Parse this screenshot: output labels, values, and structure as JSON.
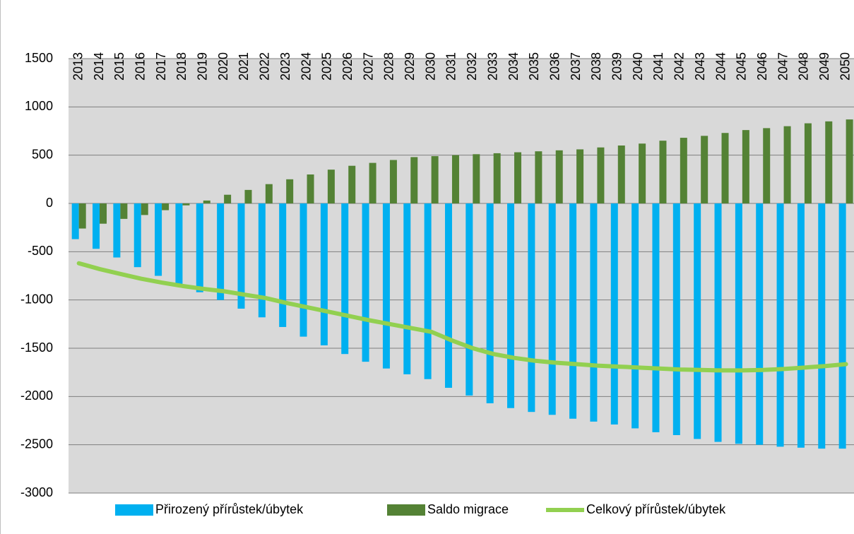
{
  "chart_data": {
    "type": "bar-line",
    "categories": [
      "2013",
      "2014",
      "2015",
      "2016",
      "2017",
      "2018",
      "2019",
      "2020",
      "2021",
      "2022",
      "2023",
      "2024",
      "2025",
      "2026",
      "2027",
      "2028",
      "2029",
      "2030",
      "2031",
      "2032",
      "2033",
      "2034",
      "2035",
      "2036",
      "2037",
      "2038",
      "2039",
      "2040",
      "2041",
      "2042",
      "2043",
      "2044",
      "2045",
      "2046",
      "2047",
      "2048",
      "2049",
      "2050"
    ],
    "series": [
      {
        "name": "Přirozený přírůstek/úbytek",
        "type": "bar",
        "color": "#00b0f0",
        "values": [
          -370,
          -470,
          -560,
          -660,
          -750,
          -840,
          -920,
          -1000,
          -1090,
          -1180,
          -1280,
          -1380,
          -1470,
          -1560,
          -1640,
          -1710,
          -1770,
          -1820,
          -1910,
          -1990,
          -2070,
          -2120,
          -2160,
          -2190,
          -2230,
          -2260,
          -2290,
          -2330,
          -2370,
          -2400,
          -2440,
          -2470,
          -2490,
          -2500,
          -2520,
          -2530,
          -2540,
          -2540
        ]
      },
      {
        "name": "Saldo migrace",
        "type": "bar",
        "color": "#548235",
        "values": [
          -260,
          -210,
          -160,
          -120,
          -70,
          -20,
          30,
          90,
          140,
          200,
          250,
          300,
          350,
          390,
          420,
          450,
          480,
          490,
          500,
          510,
          520,
          530,
          540,
          550,
          560,
          580,
          600,
          620,
          650,
          680,
          700,
          730,
          760,
          780,
          800,
          830,
          850,
          870
        ]
      },
      {
        "name": "Celkový přírůstek/úbytek",
        "type": "line",
        "color": "#92d050",
        "values": [
          -620,
          -680,
          -730,
          -780,
          -820,
          -855,
          -885,
          -910,
          -945,
          -980,
          -1030,
          -1075,
          -1120,
          -1165,
          -1210,
          -1250,
          -1290,
          -1330,
          -1420,
          -1500,
          -1560,
          -1600,
          -1630,
          -1650,
          -1665,
          -1680,
          -1690,
          -1700,
          -1710,
          -1720,
          -1725,
          -1730,
          -1730,
          -1725,
          -1715,
          -1700,
          -1685,
          -1665
        ]
      }
    ],
    "ylim": [
      -3000,
      1500
    ],
    "yticks": [
      -3000,
      -2500,
      -2000,
      -1500,
      -1000,
      -500,
      0,
      500,
      1000,
      1500
    ],
    "grid": true,
    "legend": "bottom"
  }
}
